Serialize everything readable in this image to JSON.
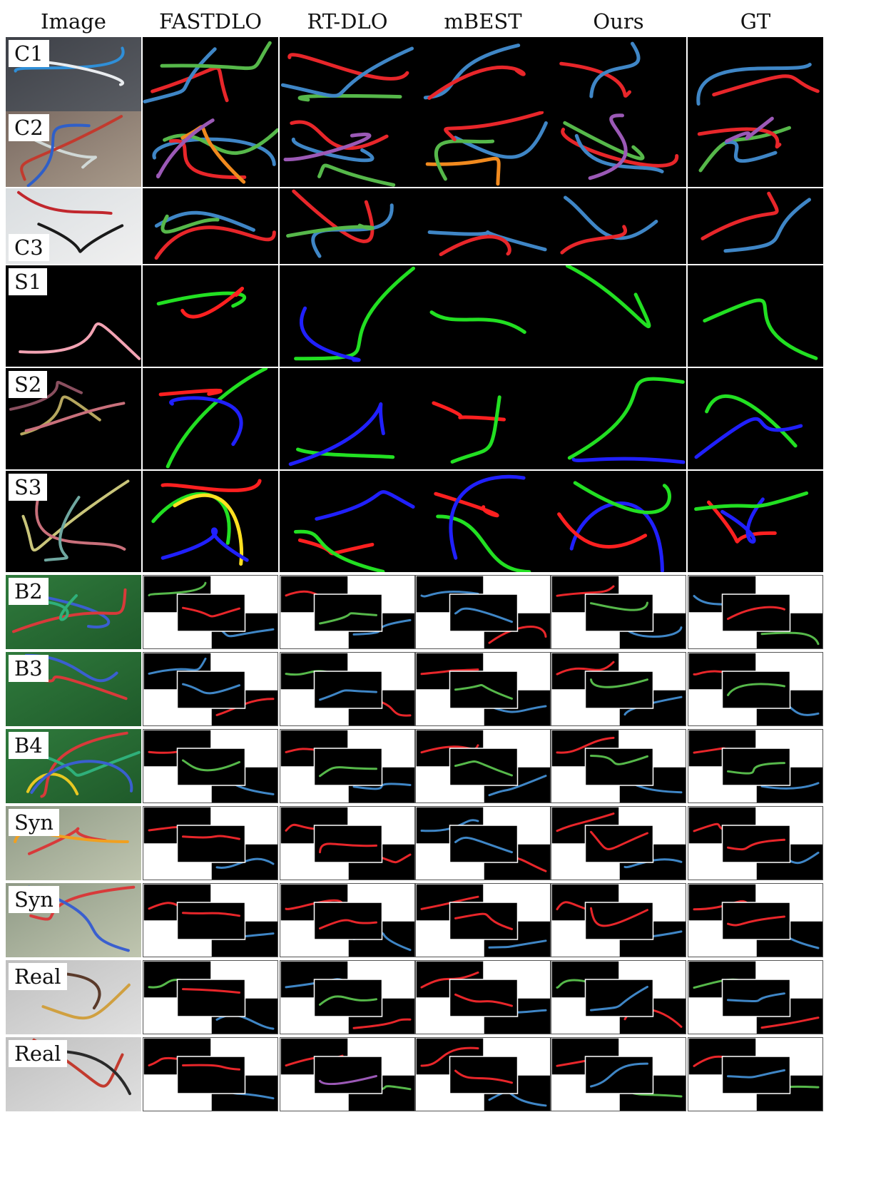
{
  "headers": [
    "Image",
    "FASTDLO",
    "RT-DLO",
    "mBEST",
    "Ours",
    "GT"
  ],
  "rows": [
    {
      "label": "C1",
      "bg": [
        "#3e4148",
        "#5a5d63"
      ],
      "wires": [
        "#2f8fd8",
        "#e9ecef"
      ],
      "pred": [
        [
          "#e8262a",
          "#3f86c6",
          "#56b84a"
        ],
        [
          "#e8262a",
          "#56b84a",
          "#3f86c6"
        ],
        [
          "#3f86c6",
          "#e8262a"
        ],
        [
          "#e8262a",
          "#3f86c6"
        ],
        [
          "#3f86c6",
          "#e8262a"
        ]
      ]
    },
    {
      "label": "C2",
      "bg": [
        "#7a6a62",
        "#a89a8a"
      ],
      "wires": [
        "#d0d8d6",
        "#c23a2e",
        "#2f5fc8"
      ],
      "pred": [
        [
          "#3f86c6",
          "#e8262a",
          "#56b84a",
          "#f18a1e",
          "#9b59b6"
        ],
        [
          "#e8262a",
          "#3f86c6",
          "#9b59b6",
          "#56b84a"
        ],
        [
          "#f18a1e",
          "#3f86c6",
          "#56b84a",
          "#e8262a"
        ],
        [
          "#e8262a",
          "#3f86c6",
          "#56b84a",
          "#9b59b6"
        ],
        [
          "#56b84a",
          "#e8262a",
          "#3f86c6",
          "#9b59b6"
        ]
      ]
    },
    {
      "label": "C3",
      "labelPos": "bottom",
      "bg": [
        "#d9dde0",
        "#f0f0f0"
      ],
      "wires": [
        "#c1272d",
        "#1a1a1a"
      ],
      "pred": [
        [
          "#3f86c6",
          "#e8262a",
          "#56b84a"
        ],
        [
          "#e8262a",
          "#3f86c6",
          "#56b84a"
        ],
        [
          "#3f86c6",
          "#e8262a"
        ],
        [
          "#3f86c6",
          "#e8262a"
        ],
        [
          "#e8262a",
          "#3f86c6"
        ]
      ]
    },
    {
      "label": "S1",
      "bg": [
        "#000000",
        "#000000"
      ],
      "wires": [
        "#f2a3b3"
      ],
      "pred": [
        [
          "#22e022",
          "#ff2020"
        ],
        [
          "#22e022",
          "#2020ff"
        ],
        [
          "#22e022"
        ],
        [
          "#22e022"
        ],
        [
          "#22e022"
        ]
      ]
    },
    {
      "label": "S2",
      "bg": [
        "#000000",
        "#000000"
      ],
      "wires": [
        "#b5a65e",
        "#c9707b",
        "#8a4f5f"
      ],
      "pred": [
        [
          "#ff2020",
          "#22e022",
          "#2020ff"
        ],
        [
          "#22e022",
          "#2020ff"
        ],
        [
          "#ff2020",
          "#22e022"
        ],
        [
          "#22e022",
          "#2020ff"
        ],
        [
          "#22e022",
          "#2020ff"
        ]
      ]
    },
    {
      "label": "S3",
      "bg": [
        "#000000",
        "#000000"
      ],
      "wires": [
        "#c9c57a",
        "#c9707b",
        "#6fa7a0"
      ],
      "pred": [
        [
          "#ff2020",
          "#22e022",
          "#ffe020",
          "#2020ff"
        ],
        [
          "#ff2020",
          "#2020ff",
          "#22e022"
        ],
        [
          "#ff2020",
          "#22e022",
          "#2020ff"
        ],
        [
          "#2020ff",
          "#ff2020",
          "#22e022"
        ],
        [
          "#ff2020",
          "#2020ff",
          "#22e022"
        ]
      ]
    },
    {
      "label": "B2",
      "bg": [
        "#2f7a3c",
        "#1f5a2a"
      ],
      "wires": [
        "#3a5fcf",
        "#d83a3a",
        "#2fb07a"
      ],
      "pred": [
        [
          "#56b84a",
          "#3f86c6",
          "#e8262a"
        ],
        [
          "#e8262a",
          "#3f86c6",
          "#56b84a"
        ],
        [
          "#3f86c6",
          "#e8262a"
        ],
        [
          "#e8262a",
          "#3f86c6",
          "#56b84a"
        ],
        [
          "#3f86c6",
          "#56b84a",
          "#e8262a"
        ]
      ]
    },
    {
      "label": "B3",
      "bg": [
        "#2f7a3c",
        "#1f5a2a"
      ],
      "wires": [
        "#3a5fcf",
        "#d83a3a"
      ],
      "pred": [
        [
          "#3f86c6",
          "#e8262a"
        ],
        [
          "#56b84a",
          "#e8262a",
          "#3f86c6"
        ],
        [
          "#e8262a",
          "#3f86c6",
          "#56b84a"
        ],
        [
          "#e8262a",
          "#3f86c6",
          "#56b84a",
          "#9b59b6"
        ],
        [
          "#e8262a",
          "#3f86c6",
          "#56b84a"
        ]
      ]
    },
    {
      "label": "B4",
      "bg": [
        "#2f7a3c",
        "#1f5a2a"
      ],
      "wires": [
        "#e8c822",
        "#d83a3a",
        "#2fb07a",
        "#3a5fcf"
      ],
      "pred": [
        [
          "#e8262a",
          "#3f86c6",
          "#56b84a",
          "#9b59b6"
        ],
        [
          "#e8262a",
          "#3f86c6",
          "#56b84a"
        ],
        [
          "#e8262a",
          "#3f86c6",
          "#56b84a"
        ],
        [
          "#e8262a",
          "#3f86c6",
          "#56b84a",
          "#9b59b6"
        ],
        [
          "#e8262a",
          "#3f86c6",
          "#56b84a",
          "#9b59b6"
        ]
      ]
    },
    {
      "label": "Syn",
      "bg": [
        "#8f9a86",
        "#c0c6b0"
      ],
      "wires": [
        "#d83a3a",
        "#f0a020"
      ],
      "pred": [
        [
          "#e8262a",
          "#3f86c6"
        ],
        [
          "#e8262a",
          "#e8262a"
        ],
        [
          "#3f86c6",
          "#e8262a"
        ],
        [
          "#e8262a",
          "#3f86c6"
        ],
        [
          "#e8262a",
          "#3f86c6"
        ]
      ]
    },
    {
      "label": "Syn",
      "bg": [
        "#8f9a86",
        "#c0c6b0"
      ],
      "wires": [
        "#d83a3a",
        "#3a5fcf"
      ],
      "pred": [
        [
          "#e8262a",
          "#3f86c6"
        ],
        [
          "#e8262a",
          "#3f86c6"
        ],
        [
          "#e8262a",
          "#3f86c6"
        ],
        [
          "#e8262a",
          "#3f86c6"
        ],
        [
          "#e8262a",
          "#3f86c6"
        ]
      ]
    },
    {
      "label": "Real",
      "bg": [
        "#bfbfbf",
        "#e0e0e0"
      ],
      "wires": [
        "#5a3a2a",
        "#d0a040"
      ],
      "pred": [
        [
          "#56b84a",
          "#3f86c6",
          "#e8262a"
        ],
        [
          "#3f86c6",
          "#e8262a",
          "#56b84a"
        ],
        [
          "#e8262a",
          "#3f86c6"
        ],
        [
          "#56b84a",
          "#e8262a",
          "#3f86c6"
        ],
        [
          "#56b84a",
          "#e8262a",
          "#3f86c6"
        ]
      ]
    },
    {
      "label": "Real",
      "bg": [
        "#bfbfbf",
        "#e0e0e0"
      ],
      "wires": [
        "#c23a2e",
        "#2a2a2a"
      ],
      "pred": [
        [
          "#e8262a",
          "#3f86c6"
        ],
        [
          "#e8262a",
          "#56b84a",
          "#9b59b6"
        ],
        [
          "#e8262a",
          "#3f86c6"
        ],
        [
          "#e8262a",
          "#56b84a",
          "#3f86c6"
        ],
        [
          "#e8262a",
          "#56b84a",
          "#3f86c6"
        ]
      ]
    }
  ]
}
